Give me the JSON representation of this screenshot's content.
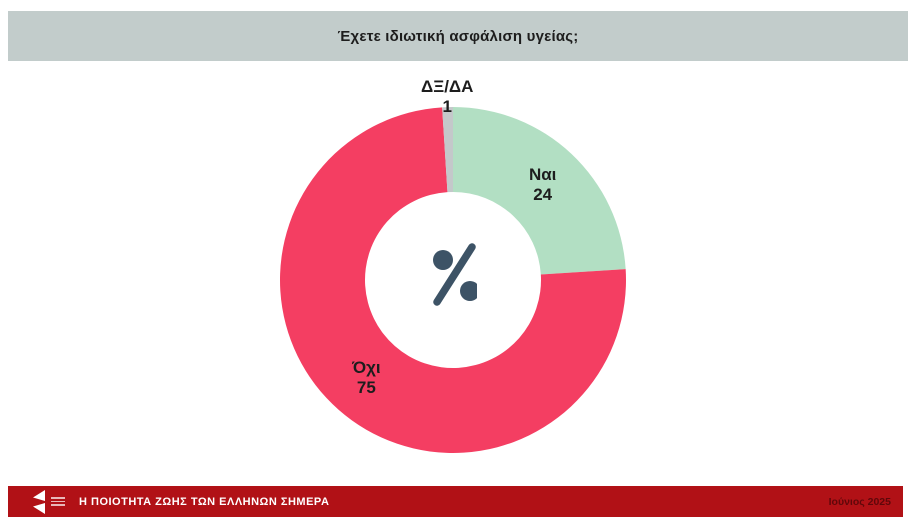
{
  "header": {
    "title": "Έχετε ιδιωτική ασφάλιση υγείας;"
  },
  "chart_data": {
    "type": "pie",
    "subtype": "donut",
    "title": "Έχετε ιδιωτική ασφάλιση υγείας;",
    "unit": "%",
    "categories": [
      "Ναι",
      "Όχι",
      "ΔΞ/ΔΑ"
    ],
    "values": [
      24,
      75,
      1
    ],
    "colors": [
      "#b2dfc3",
      "#f43e62",
      "#c4c8ca"
    ],
    "total": 100,
    "start_angle_deg": 0,
    "direction": "clockwise",
    "center_symbol": "%",
    "legend_position": "none",
    "labels_on_slices": true,
    "outside_label_threshold": 3
  },
  "footer": {
    "title": "Η ΠΟΙΟΤΗΤΑ ΖΩΗΣ ΤΩΝ ΕΛΛΗΝΩΝ ΣΗΜΕΡΑ",
    "date": "Ιούνιος 2025"
  },
  "colors": {
    "title_bar_bg": "#c2cccb",
    "footer_bg": "#b11116",
    "slice_yes": "#b2dfc3",
    "slice_no": "#f43e62",
    "slice_dk": "#c4c8ca",
    "percent_symbol": "#3d5366",
    "label_text": "#1d1d1d"
  }
}
